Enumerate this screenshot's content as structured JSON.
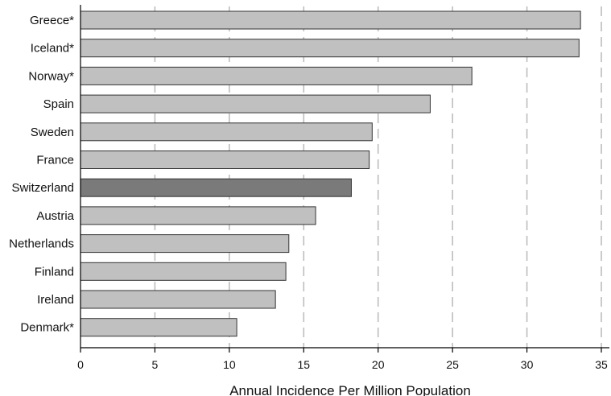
{
  "chart_data": {
    "type": "bar",
    "orientation": "horizontal",
    "title": "",
    "xlabel": "Annual Incidence Per Million Population",
    "ylabel": "",
    "xlim": [
      0,
      35
    ],
    "xticks": [
      0,
      5,
      10,
      15,
      20,
      25,
      30,
      35
    ],
    "grid": "vertical dashed",
    "categories": [
      "Greece*",
      "Iceland*",
      "Norway*",
      "Spain",
      "Sweden",
      "France",
      "Switzerland",
      "Austria",
      "Netherlands",
      "Finland",
      "Ireland",
      "Denmark*"
    ],
    "values": [
      33.6,
      33.5,
      26.3,
      23.5,
      19.6,
      19.4,
      18.2,
      15.8,
      14.0,
      13.8,
      13.1,
      10.5
    ],
    "highlight": "Switzerland",
    "colors": {
      "bar": "#c0c0c0",
      "highlight": "#7a7a7a",
      "stroke": "#333333",
      "grid": "#bdbdbd"
    }
  }
}
